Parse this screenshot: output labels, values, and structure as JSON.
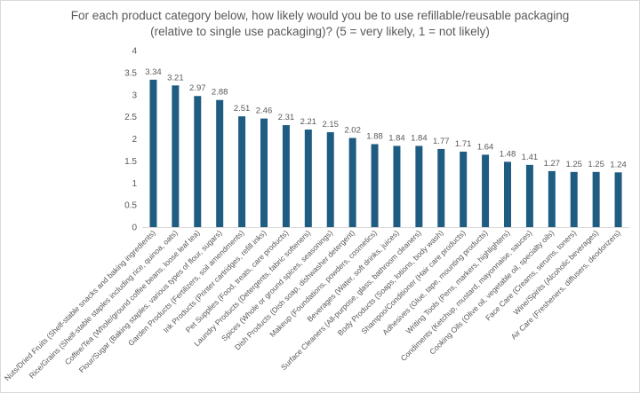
{
  "chart_data": {
    "type": "bar",
    "title_lines": [
      "For each product category below, how likely would you be to use refillable/reusable packaging",
      "(relative to single use packaging)? (5 = very likely, 1 = not likely)"
    ],
    "categories": [
      "Nuts/Dried Fruits (Shelf-stable snacks and baking ingredients)",
      "Rice/Grains (Shelf-stable staples including rice, quinoa, oats)",
      "Coffee/Tea (Whole/ground coffee beans, loose leaf tea)",
      "Flour/Sugar (Baking staples, various types of flour, sugars)",
      "Garden Products (Fertilizers, soil amendments)",
      "Ink Products (Printer cartridges, refill inks)",
      "Pet Supplies (Food, treats, care products)",
      "Laundry Products (Detergents, fabric softeners)",
      "Spices (Whole or ground spices, seasonings)",
      "Dish Products (Dish soap, dishwasher detergent)",
      "Makeup (Foundations, powders, cosmetics)",
      "Beverages (Water, soft drinks, juices)",
      "Surface Cleaners (All-purpose, glass, bathroom cleaners)",
      "Body Products (Soaps, lotions, body wash)",
      "Shampoo/Conditioner (Hair care products)",
      "Adhesives (Glue, tape, mounting products)",
      "Writing Tools (Pens, markers, highlighters)",
      "Condiments (Ketchup, mustard, mayonnaise, sauces)",
      "Cooking Oils (Olive oil, vegetable oil, specialty oils)",
      "Face Care (Creams, serums, toners)",
      "Wine/Spirits (Alcoholic beverages)",
      "Air Care (Fresheners, diffusers, deodorizers)"
    ],
    "values": [
      3.34,
      3.21,
      2.97,
      2.88,
      2.51,
      2.46,
      2.31,
      2.21,
      2.15,
      2.02,
      1.88,
      1.84,
      1.84,
      1.77,
      1.71,
      1.64,
      1.48,
      1.41,
      1.27,
      1.25,
      1.25,
      1.24
    ],
    "data_labels": [
      "3.34",
      "3.21",
      "2.97",
      "2.88",
      "2.51",
      "2.46",
      "2.31",
      "2.21",
      "2.15",
      "2.02",
      "1.88",
      "1.84",
      "1.84",
      "1.77",
      "1.71",
      "1.64",
      "1.48",
      "1.41",
      "1.27",
      "1.25",
      "1.25",
      "1.24"
    ],
    "yticks": [
      "0",
      "0.5",
      "1",
      "1.5",
      "2",
      "2.5",
      "3",
      "3.5",
      "4"
    ],
    "ylim": [
      0,
      4
    ],
    "grid": false,
    "legend": "none",
    "bar_color": "#1f5c82"
  }
}
